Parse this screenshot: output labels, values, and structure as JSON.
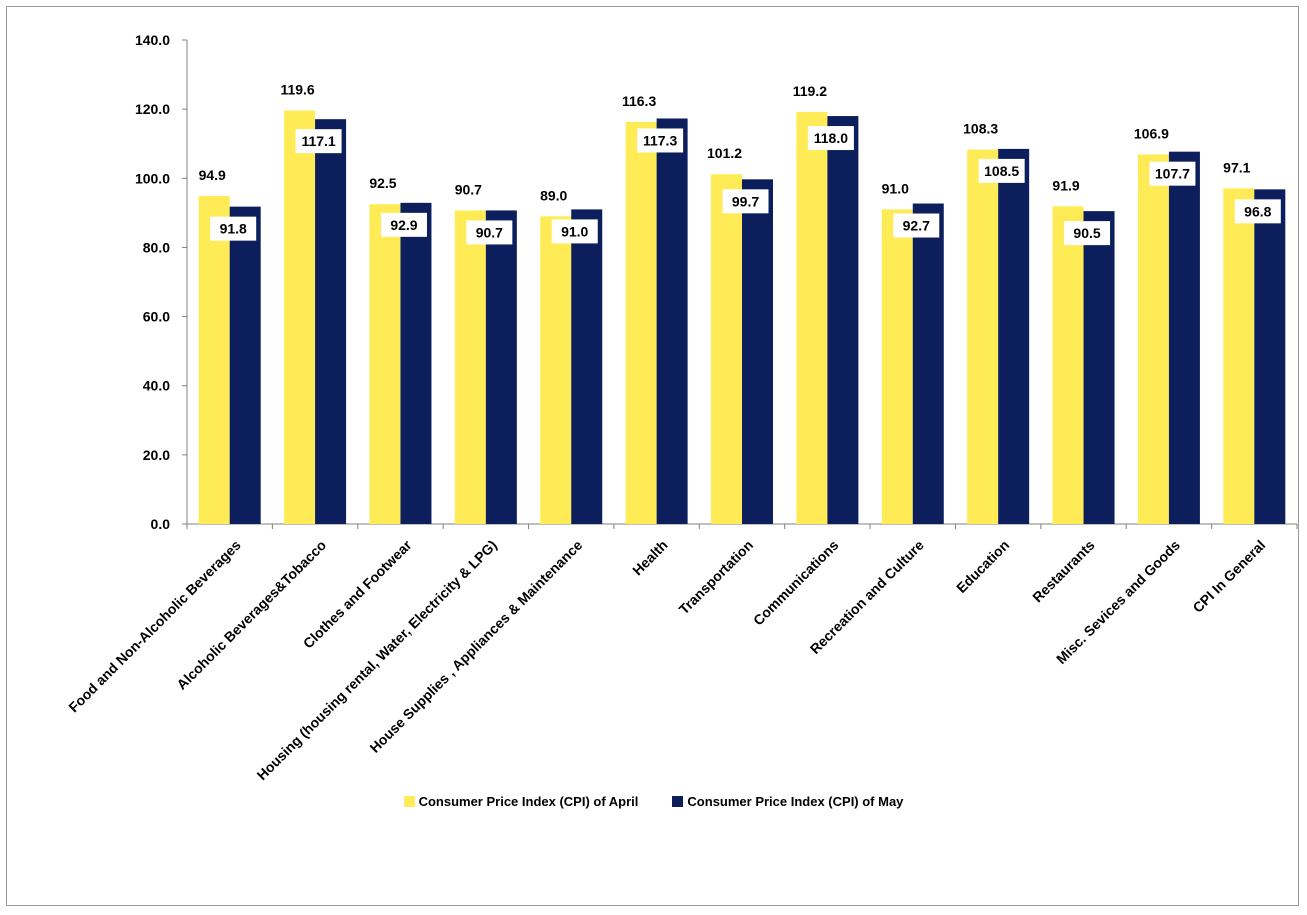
{
  "chart_data": {
    "type": "bar",
    "title": "",
    "xlabel": "",
    "ylabel": "",
    "ylim": [
      0,
      140
    ],
    "yticks": [
      "0.0",
      "20.0",
      "40.0",
      "60.0",
      "80.0",
      "100.0",
      "120.0",
      "140.0"
    ],
    "grid": false,
    "legend_position": "bottom",
    "categories": [
      "Food and Non-Alcoholic Beverages",
      "Alcoholic Beverages&Tobacco",
      "Clothes and Footwear",
      "Housing (housing rental, Water, Electricity & LPG)",
      "House Supplies , Appliances & Maintenance",
      "Health",
      "Transportation",
      "Communications",
      "Recreation and Culture",
      "Education",
      "Restaurants",
      "Misc. Sevices and Goods",
      "CPI In General"
    ],
    "series": [
      {
        "name": "Consumer Price Index (CPI) of  April",
        "color": "#FFEB55",
        "values": [
          94.9,
          119.6,
          92.5,
          90.7,
          89.0,
          116.3,
          101.2,
          119.2,
          91.0,
          108.3,
          91.9,
          106.9,
          97.1
        ],
        "labels": [
          "94.9",
          "119.6",
          "92.5",
          "90.7",
          "89.0",
          "116.3",
          "101.2",
          "119.2",
          "91.0",
          "108.3",
          "91.9",
          "106.9",
          "97.1"
        ]
      },
      {
        "name": "Consumer Price Index (CPI) of May",
        "color": "#0C1F5C",
        "values": [
          91.8,
          117.1,
          92.9,
          90.7,
          91.0,
          117.3,
          99.7,
          118.0,
          92.7,
          108.5,
          90.5,
          107.7,
          96.8
        ],
        "labels": [
          "91.8",
          "117.1",
          "92.9",
          "90.7",
          "91.0",
          "117.3",
          "99.7",
          "118.0",
          "92.7",
          "108.5",
          "90.5",
          "107.7",
          "96.8"
        ]
      }
    ]
  }
}
